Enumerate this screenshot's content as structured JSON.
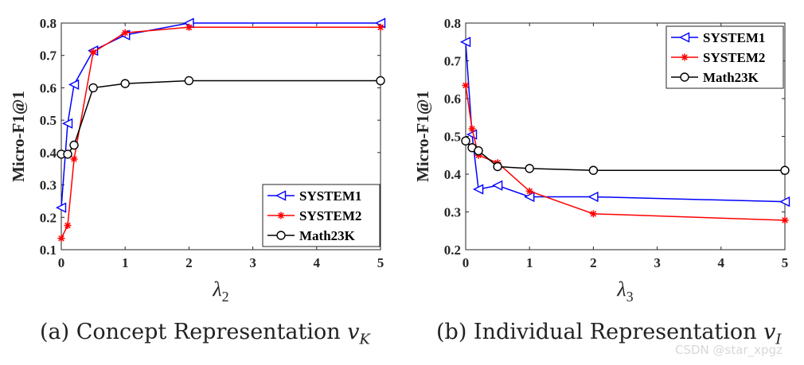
{
  "charts": [
    {
      "type": "line",
      "id": "a",
      "ylabel": "Micro-F1@1",
      "xlabel": "λ",
      "xlabel_sub": "2",
      "xlim": [
        0,
        5
      ],
      "ylim": [
        0.1,
        0.8
      ],
      "xticks": [
        0,
        1,
        2,
        3,
        4,
        5
      ],
      "yticks": [
        0.1,
        0.2,
        0.3,
        0.4,
        0.5,
        0.6,
        0.7,
        0.8
      ],
      "legend_position": "bottom-right",
      "x": [
        0,
        0.1,
        0.2,
        0.5,
        1,
        2,
        5
      ],
      "series": [
        {
          "name": "SYSTEM1",
          "color": "#0000ff",
          "marker": "triangle-left",
          "values": [
            0.23,
            0.49,
            0.61,
            0.715,
            0.763,
            0.8,
            0.8
          ]
        },
        {
          "name": "SYSTEM2",
          "color": "#ff0000",
          "marker": "asterisk",
          "values": [
            0.135,
            0.175,
            0.38,
            0.71,
            0.77,
            0.787,
            0.787
          ]
        },
        {
          "name": "Math23K",
          "color": "#000000",
          "marker": "circle",
          "values": [
            0.395,
            0.395,
            0.423,
            0.6,
            0.613,
            0.622,
            0.622
          ]
        }
      ],
      "caption_prefix": "(a)  Concept Representation ",
      "caption_math": "v",
      "caption_sub": "K"
    },
    {
      "type": "line",
      "id": "b",
      "ylabel": "Micro-F1@1",
      "xlabel": "λ",
      "xlabel_sub": "3",
      "xlim": [
        0,
        5
      ],
      "ylim": [
        0.2,
        0.8
      ],
      "xticks": [
        0,
        1,
        2,
        3,
        4,
        5
      ],
      "yticks": [
        0.2,
        0.3,
        0.4,
        0.5,
        0.6,
        0.7,
        0.8
      ],
      "legend_position": "top-right",
      "x": [
        0,
        0.1,
        0.2,
        0.5,
        1,
        2,
        5
      ],
      "series": [
        {
          "name": "SYSTEM1",
          "color": "#0000ff",
          "marker": "triangle-left",
          "values": [
            0.75,
            0.505,
            0.36,
            0.37,
            0.34,
            0.34,
            0.327
          ]
        },
        {
          "name": "SYSTEM2",
          "color": "#ff0000",
          "marker": "asterisk",
          "values": [
            0.635,
            0.52,
            0.45,
            0.43,
            0.355,
            0.295,
            0.278
          ]
        },
        {
          "name": "Math23K",
          "color": "#000000",
          "marker": "circle",
          "values": [
            0.488,
            0.47,
            0.462,
            0.42,
            0.415,
            0.41,
            0.41
          ]
        }
      ],
      "caption_prefix": "(b)  Individual Representation ",
      "caption_math": "v",
      "caption_sub": "I"
    }
  ],
  "watermark": "CSDN @star_xpgz"
}
